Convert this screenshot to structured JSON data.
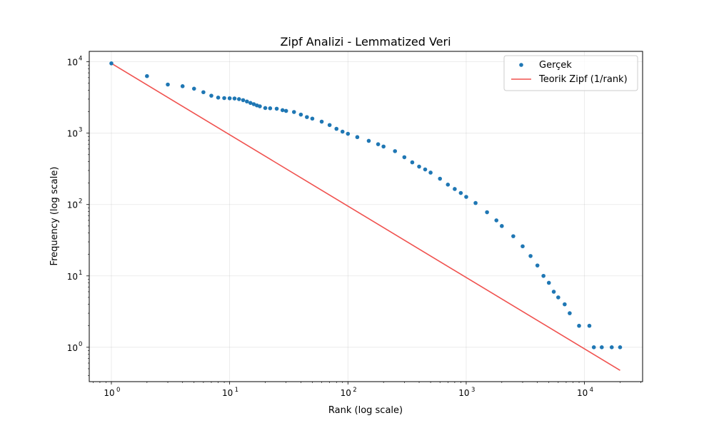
{
  "chart_data": {
    "type": "scatter",
    "title": "Zipf Analizi - Lemmatized Veri",
    "xlabel": "Rank (log scale)",
    "ylabel": "Frequency (log scale)",
    "x_scale": "log",
    "y_scale": "log",
    "xlim": [
      0.65,
      31000
    ],
    "ylim": [
      0.33,
      14000
    ],
    "grid": true,
    "legend_position": "top-right",
    "x_ticks": [
      {
        "value": 1,
        "base": "10",
        "exp": "0"
      },
      {
        "value": 10,
        "base": "10",
        "exp": "1"
      },
      {
        "value": 100,
        "base": "10",
        "exp": "2"
      },
      {
        "value": 1000,
        "base": "10",
        "exp": "3"
      },
      {
        "value": 10000,
        "base": "10",
        "exp": "4"
      }
    ],
    "y_ticks": [
      {
        "value": 1,
        "base": "10",
        "exp": "0"
      },
      {
        "value": 10,
        "base": "10",
        "exp": "1"
      },
      {
        "value": 100,
        "base": "10",
        "exp": "2"
      },
      {
        "value": 1000,
        "base": "10",
        "exp": "3"
      },
      {
        "value": 10000,
        "base": "10",
        "exp": "4"
      }
    ],
    "series": [
      {
        "name": "Gerçek",
        "kind": "scatter",
        "color": "#1f77b4",
        "points": [
          [
            1,
            9500
          ],
          [
            2,
            6300
          ],
          [
            3,
            4800
          ],
          [
            4,
            4550
          ],
          [
            5,
            4200
          ],
          [
            6,
            3750
          ],
          [
            7,
            3350
          ],
          [
            8,
            3150
          ],
          [
            9,
            3100
          ],
          [
            10,
            3080
          ],
          [
            11,
            3060
          ],
          [
            12,
            3000
          ],
          [
            13,
            2900
          ],
          [
            14,
            2780
          ],
          [
            15,
            2650
          ],
          [
            16,
            2550
          ],
          [
            17,
            2450
          ],
          [
            18,
            2380
          ],
          [
            20,
            2250
          ],
          [
            22,
            2230
          ],
          [
            25,
            2200
          ],
          [
            28,
            2100
          ],
          [
            30,
            2050
          ],
          [
            35,
            1980
          ],
          [
            40,
            1820
          ],
          [
            45,
            1680
          ],
          [
            50,
            1600
          ],
          [
            60,
            1450
          ],
          [
            70,
            1300
          ],
          [
            80,
            1150
          ],
          [
            90,
            1050
          ],
          [
            100,
            980
          ],
          [
            120,
            880
          ],
          [
            150,
            780
          ],
          [
            180,
            700
          ],
          [
            200,
            650
          ],
          [
            250,
            560
          ],
          [
            300,
            460
          ],
          [
            350,
            390
          ],
          [
            400,
            340
          ],
          [
            450,
            310
          ],
          [
            500,
            280
          ],
          [
            600,
            230
          ],
          [
            700,
            190
          ],
          [
            800,
            165
          ],
          [
            900,
            145
          ],
          [
            1000,
            128
          ],
          [
            1200,
            105
          ],
          [
            1500,
            78
          ],
          [
            1800,
            60
          ],
          [
            2000,
            50
          ],
          [
            2500,
            36
          ],
          [
            3000,
            26
          ],
          [
            3500,
            19
          ],
          [
            4000,
            14
          ],
          [
            4500,
            10
          ],
          [
            5000,
            8
          ],
          [
            5500,
            6
          ],
          [
            6000,
            5
          ],
          [
            6800,
            4
          ],
          [
            7500,
            3
          ],
          [
            9000,
            2
          ],
          [
            11000,
            2
          ],
          [
            12000,
            1
          ],
          [
            14000,
            1
          ],
          [
            17000,
            1
          ],
          [
            20000,
            1
          ]
        ]
      },
      {
        "name": "Teorik Zipf (1/rank)",
        "kind": "line",
        "color": "#f0524f",
        "points": [
          [
            1,
            9500
          ],
          [
            20000,
            0.475
          ]
        ]
      }
    ]
  }
}
